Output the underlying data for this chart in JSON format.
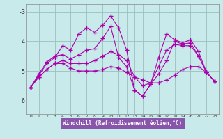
{
  "xlabel": "Windchill (Refroidissement éolien,°C)",
  "background_color": "#c8eaea",
  "grid_color": "#9bbfbf",
  "line_color": "#aa00aa",
  "xlabel_bg": "#8855aa",
  "x_ticks": [
    0,
    1,
    2,
    3,
    4,
    5,
    6,
    7,
    8,
    9,
    10,
    11,
    12,
    13,
    14,
    15,
    16,
    17,
    18,
    19,
    20,
    21,
    22,
    23
  ],
  "ylim": [
    -6.45,
    -2.75
  ],
  "yticks": [
    -3,
    -4,
    -5,
    -6
  ],
  "series": [
    [
      -5.55,
      -5.15,
      -4.75,
      -4.55,
      -4.15,
      -4.3,
      -3.75,
      -3.55,
      -3.7,
      -3.45,
      -3.15,
      -3.55,
      -4.3,
      -5.65,
      -5.85,
      -5.45,
      -4.55,
      -3.75,
      -3.95,
      -4.05,
      -3.95,
      -4.35,
      -5.05,
      -5.35
    ],
    [
      -5.55,
      -5.1,
      -4.7,
      -4.5,
      -4.45,
      -4.6,
      -4.45,
      -4.3,
      -4.25,
      -3.9,
      -3.5,
      -4.55,
      -4.85,
      -5.65,
      -5.85,
      -5.45,
      -5.1,
      -4.65,
      -4.0,
      -4.1,
      -4.05,
      -4.5,
      -5.05,
      -5.35
    ],
    [
      -5.55,
      -5.2,
      -4.95,
      -4.75,
      -4.75,
      -4.9,
      -5.0,
      -5.0,
      -5.0,
      -4.95,
      -4.85,
      -4.9,
      -5.05,
      -5.2,
      -5.3,
      -5.4,
      -5.4,
      -5.3,
      -5.15,
      -4.95,
      -4.85,
      -4.85,
      -5.05,
      -5.35
    ],
    [
      -5.55,
      -5.2,
      -4.95,
      -4.75,
      -4.65,
      -4.75,
      -4.75,
      -4.75,
      -4.65,
      -4.5,
      -4.35,
      -4.45,
      -4.65,
      -5.2,
      -5.5,
      -5.4,
      -4.85,
      -4.3,
      -4.1,
      -4.15,
      -4.15,
      -4.5,
      -5.05,
      -5.35
    ]
  ]
}
